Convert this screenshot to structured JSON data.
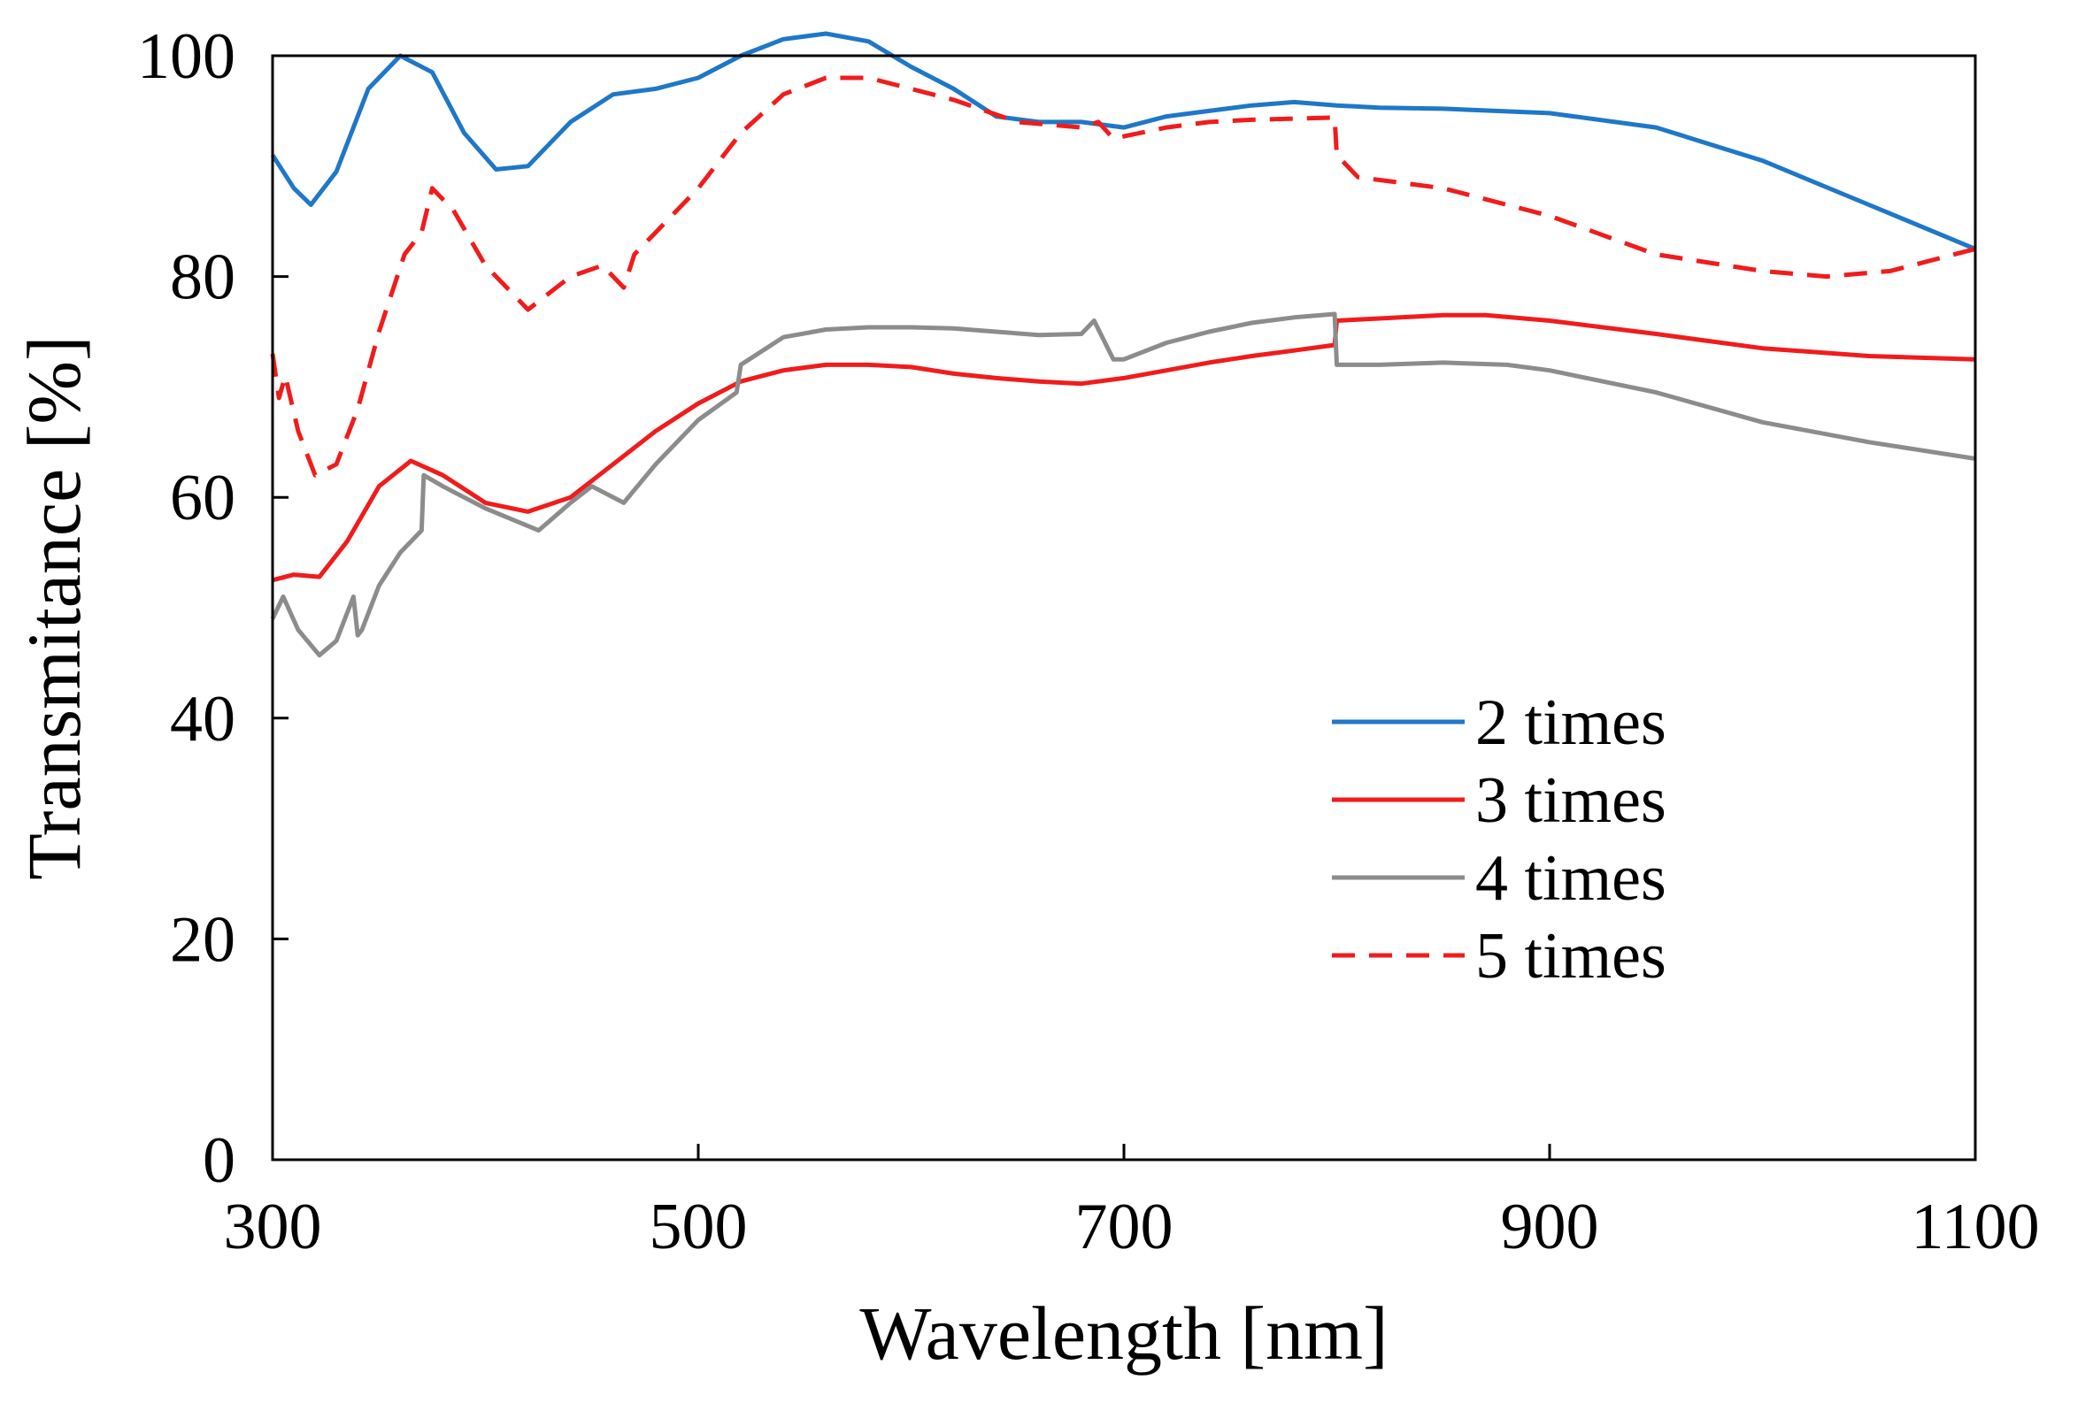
{
  "chart_data": {
    "type": "line",
    "title": "",
    "xlabel": "Wavelength [nm]",
    "ylabel": "Transmitance [%]",
    "xlim": [
      300,
      1100
    ],
    "ylim": [
      0,
      100
    ],
    "x_ticks": [
      300,
      500,
      700,
      900,
      1100
    ],
    "y_ticks": [
      0,
      20,
      40,
      60,
      80,
      100
    ],
    "grid": false,
    "legend_position": "lower-right",
    "series": [
      {
        "name": "2 times",
        "color": "#1f77c8",
        "dash": "solid",
        "x": [
          300,
          310,
          318,
          330,
          345,
          360,
          375,
          390,
          405,
          420,
          440,
          460,
          480,
          500,
          520,
          540,
          560,
          580,
          600,
          620,
          640,
          660,
          680,
          700,
          720,
          740,
          760,
          780,
          800,
          820,
          850,
          900,
          950,
          1000,
          1050,
          1100
        ],
        "y": [
          91,
          88,
          86.5,
          89.5,
          97,
          100,
          98.5,
          93,
          89.7,
          90,
          94,
          96.5,
          97,
          98,
          100,
          101.5,
          102,
          101.3,
          99,
          97,
          94.5,
          94,
          94,
          93.5,
          94.5,
          95,
          95.5,
          95.8,
          95.5,
          95.3,
          95.2,
          94.8,
          93.5,
          90.5,
          86.5,
          82.5
        ]
      },
      {
        "name": "3 times",
        "color": "#f01c1c",
        "dash": "solid",
        "x": [
          300,
          310,
          322,
          335,
          350,
          365,
          380,
          400,
          420,
          440,
          460,
          480,
          500,
          520,
          540,
          560,
          580,
          600,
          620,
          640,
          660,
          680,
          700,
          720,
          740,
          760,
          780,
          799,
          800,
          820,
          850,
          870,
          900,
          950,
          1000,
          1050,
          1100
        ],
        "y": [
          52.5,
          53,
          52.8,
          56,
          61,
          63.3,
          62,
          59.5,
          58.7,
          60,
          63,
          66,
          68.5,
          70.5,
          71.5,
          72,
          72,
          71.8,
          71.2,
          70.8,
          70.5,
          70.3,
          70.8,
          71.5,
          72.2,
          72.8,
          73.3,
          73.8,
          76,
          76.2,
          76.5,
          76.5,
          76,
          74.8,
          73.5,
          72.8,
          72.5
        ]
      },
      {
        "name": "4 times",
        "color": "#8c8c8c",
        "dash": "solid",
        "x": [
          300,
          305,
          312,
          322,
          330,
          338,
          340,
          342,
          350,
          360,
          370,
          371,
          380,
          400,
          425,
          440,
          450,
          465,
          480,
          500,
          518,
          520,
          540,
          560,
          580,
          600,
          620,
          640,
          660,
          680,
          686,
          695,
          700,
          720,
          740,
          760,
          780,
          799,
          800,
          820,
          850,
          880,
          900,
          950,
          1000,
          1050,
          1100
        ],
        "y": [
          49,
          51,
          48,
          45.7,
          47,
          51,
          47.5,
          48,
          52,
          55,
          57,
          62,
          61,
          59,
          57,
          59.5,
          61,
          59.5,
          63,
          67,
          69.5,
          72,
          74.5,
          75.2,
          75.4,
          75.4,
          75.3,
          75,
          74.7,
          74.8,
          76,
          72.5,
          72.5,
          74,
          75,
          75.8,
          76.3,
          76.6,
          72,
          72,
          72.2,
          72,
          71.5,
          69.5,
          66.8,
          65,
          63.5
        ]
      },
      {
        "name": "5 times",
        "color": "#f01c1c",
        "dash": "dashed",
        "x": [
          300,
          303,
          306,
          312,
          320,
          330,
          340,
          350,
          362,
          370,
          375,
          385,
          400,
          420,
          440,
          455,
          465,
          470,
          480,
          500,
          520,
          540,
          560,
          580,
          600,
          620,
          650,
          680,
          688,
          695,
          720,
          740,
          760,
          780,
          799,
          800,
          810,
          850,
          900,
          950,
          1000,
          1030,
          1060,
          1100
        ],
        "y": [
          73,
          69,
          71,
          66,
          62,
          63,
          68,
          75,
          82,
          84,
          88,
          86,
          81,
          77,
          80,
          81,
          79,
          82,
          84,
          88,
          93,
          96.5,
          98,
          98,
          97,
          96,
          94,
          93.5,
          94,
          92.5,
          93.5,
          94,
          94.2,
          94.3,
          94.4,
          91,
          89,
          88,
          85.5,
          82,
          80.5,
          80,
          80.5,
          82.5
        ]
      }
    ]
  }
}
